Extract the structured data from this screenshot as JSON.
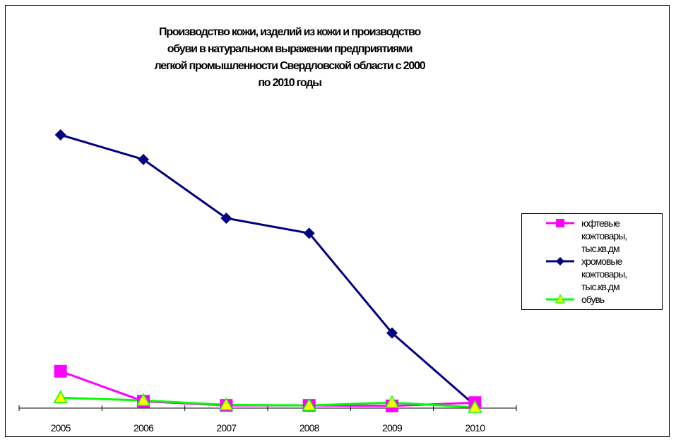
{
  "chart_data": {
    "type": "line",
    "title_lines": [
      "Производство кожи, изделий из кожи и производство",
      "обуви в натуральном выражении предприятиями",
      "легкой промышленности Свердловской области с 2000",
      "по 2010 годы"
    ],
    "categories": [
      "2005",
      "2006",
      "2007",
      "2008",
      "2009",
      "2010"
    ],
    "ylim": [
      0,
      100
    ],
    "grid": false,
    "legend_position": "right",
    "series": [
      {
        "name": "юфтевые кожтовары, тыс.кв.дм",
        "legend_lines": [
          "юфтевые",
          "кожтовары,",
          "тыс.кв.дм"
        ],
        "values": [
          13.5,
          2.5,
          1.0,
          1.0,
          0.8,
          2.0
        ],
        "color": "#ff00ff",
        "marker": "square"
      },
      {
        "name": "хромовые кожтовары, тыс.кв.дм",
        "legend_lines": [
          "хромовые",
          "кожтовары,",
          "тыс.кв.дм"
        ],
        "values": [
          100,
          91,
          69.5,
          64,
          27.5,
          1.0
        ],
        "color": "#000080",
        "marker": "diamond"
      },
      {
        "name": "обувь",
        "legend_lines": [
          "обувь"
        ],
        "values": [
          3.8,
          2.8,
          1.2,
          1.0,
          2.0,
          0.3
        ],
        "color": "#00ff00",
        "marker": "triangle",
        "marker_fill": "#ffff00"
      }
    ]
  }
}
